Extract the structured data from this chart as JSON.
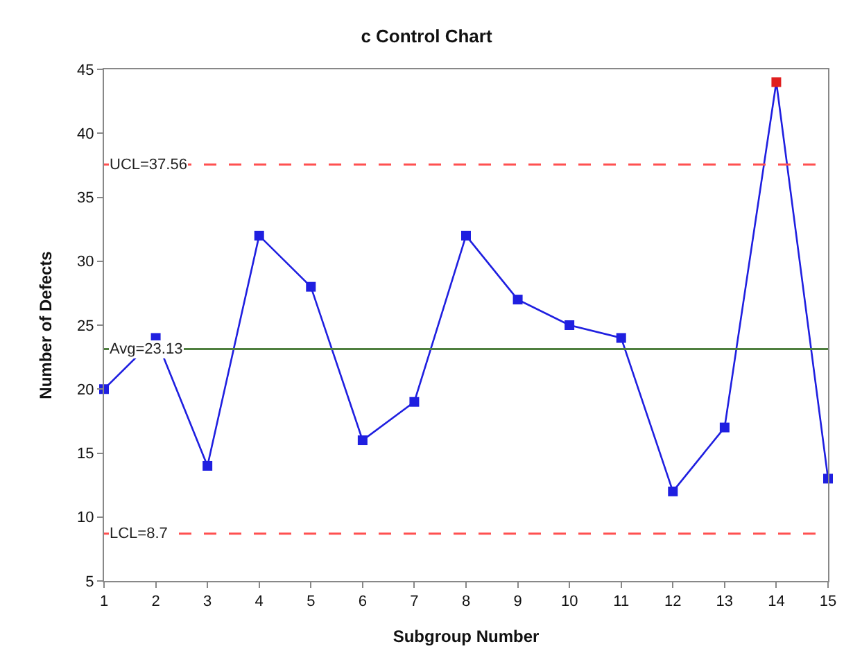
{
  "chart_data": {
    "type": "line",
    "title": "c Control Chart",
    "xlabel": "Subgroup Number",
    "ylabel": "Number of Defects",
    "x": [
      1,
      2,
      3,
      4,
      5,
      6,
      7,
      8,
      9,
      10,
      11,
      12,
      13,
      14,
      15
    ],
    "series": [
      {
        "color": "#1f1fe0",
        "values": [
          20,
          24,
          14,
          32,
          28,
          16,
          19,
          32,
          27,
          25,
          24,
          12,
          17,
          44,
          13
        ],
        "colors": [
          "#1f1fe0",
          "#1f1fe0",
          "#1f1fe0",
          "#1f1fe0",
          "#1f1fe0",
          "#1f1fe0",
          "#1f1fe0",
          "#1f1fe0",
          "#1f1fe0",
          "#1f1fe0",
          "#1f1fe0",
          "#1f1fe0",
          "#1f1fe0",
          "#e01f1f",
          "#1f1fe0"
        ]
      }
    ],
    "xlim": [
      1,
      15
    ],
    "xticks": [
      1,
      2,
      3,
      4,
      5,
      6,
      7,
      8,
      9,
      10,
      11,
      12,
      13,
      14,
      15
    ],
    "ylim": [
      5,
      45
    ],
    "yticks": [
      5,
      10,
      15,
      20,
      25,
      30,
      35,
      40,
      45
    ],
    "ref_lines": [
      {
        "axis": "y",
        "value": 37.56,
        "label": "UCL=37.56",
        "color": "#ff5050",
        "line_style": "dashed"
      },
      {
        "axis": "y",
        "value": 23.13,
        "label": "Avg=23.13",
        "color": "#4f7f3f",
        "line_style": "solid"
      },
      {
        "axis": "y",
        "value": 8.7,
        "label": "LCL=8.7",
        "color": "#ff5050",
        "line_style": "dashed"
      }
    ],
    "marker": "square",
    "line_style": "solid",
    "legend": false
  }
}
